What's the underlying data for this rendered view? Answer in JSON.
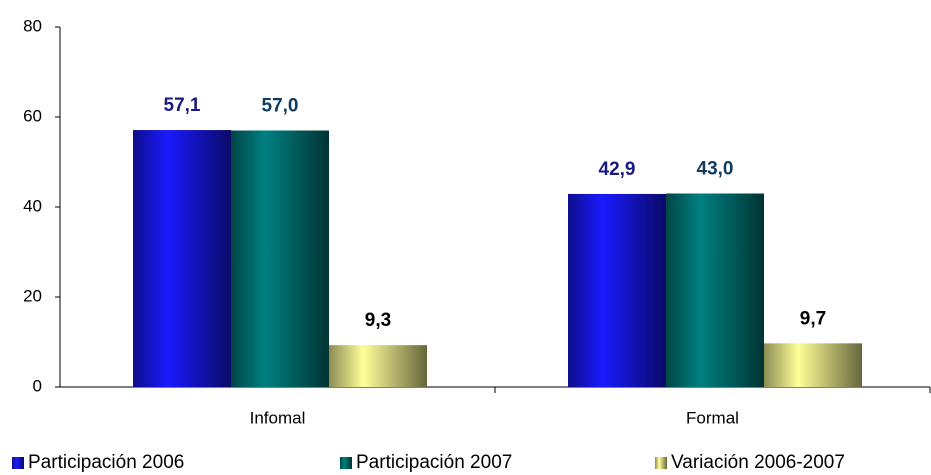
{
  "chart_data": {
    "type": "bar",
    "categories": [
      "Infomal",
      "Formal"
    ],
    "series": [
      {
        "name": "Participación 2006",
        "color": "#1a1aff",
        "label_color": "#1a1a80",
        "values": [
          57.1,
          42.9
        ],
        "value_labels": [
          "57,1",
          "42,9"
        ]
      },
      {
        "name": "Participación 2007",
        "color": "#008080",
        "label_color": "#0f3b5f",
        "values": [
          57.0,
          43.0
        ],
        "value_labels": [
          "57,0",
          "43,0"
        ]
      },
      {
        "name": "Variación 2006-2007",
        "color": "#ffff99",
        "label_color": "#000000",
        "values": [
          9.3,
          9.7
        ],
        "value_labels": [
          "9,3",
          "9,7"
        ]
      }
    ],
    "ylim": [
      0,
      80
    ],
    "yticks": [
      0,
      20,
      40,
      60,
      80
    ],
    "legend": "bottom"
  }
}
